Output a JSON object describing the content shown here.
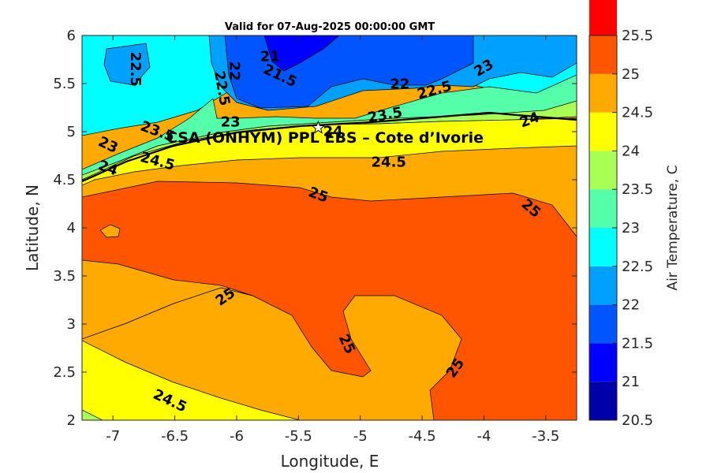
{
  "chart_data": {
    "type": "heatmap",
    "title": "Valid for 07-Aug-2025 00:00:00 GMT",
    "xlabel": "Longitude, E",
    "ylabel": "Latitude, N",
    "xlim": [
      -7.25,
      -3.25
    ],
    "ylim": [
      2,
      6
    ],
    "xticks": [
      "-7",
      "-6.5",
      "-6",
      "-5.5",
      "-5",
      "-4.5",
      "-4",
      "-3.5"
    ],
    "xtick_values": [
      -7,
      -6.5,
      -6,
      -5.5,
      -5,
      -4.5,
      -4,
      -3.5
    ],
    "yticks": [
      "2",
      "2.5",
      "3",
      "3.5",
      "4",
      "4.5",
      "5",
      "5.5",
      "6"
    ],
    "ytick_values": [
      2,
      2.5,
      3,
      3.5,
      4,
      4.5,
      5,
      5.5,
      6
    ],
    "colorbar": {
      "label": "Air Temperature, C",
      "ticks": [
        "20.5",
        "21",
        "21.5",
        "22",
        "22.5",
        "23",
        "23.5",
        "24",
        "24.5",
        "25",
        "25.5"
      ],
      "tick_values": [
        20.5,
        21,
        21.5,
        22,
        22.5,
        23,
        23.5,
        24,
        24.5,
        25,
        25.5
      ],
      "colors": [
        "#0000a8",
        "#0000ff",
        "#0055ff",
        "#00a0ff",
        "#00ffff",
        "#55ffaa",
        "#aaff55",
        "#ffff00",
        "#ffaa00",
        "#ff5500",
        "#ff0000"
      ]
    },
    "station": {
      "name": "CSA (ONHYM) PPL EBS  – Cote d’Ivorie",
      "lon": -5.34,
      "lat": 5.04
    },
    "contour_labels": [
      {
        "text": "22.5",
        "lon": -6.82,
        "lat": 5.65,
        "rot": 90
      },
      {
        "text": "21",
        "lon": -5.73,
        "lat": 5.78,
        "rot": 0
      },
      {
        "text": "21.5",
        "lon": -5.65,
        "lat": 5.58,
        "rot": 25
      },
      {
        "text": "22",
        "lon": -6.02,
        "lat": 5.63,
        "rot": 90
      },
      {
        "text": "22.5",
        "lon": -6.12,
        "lat": 5.45,
        "rot": 80
      },
      {
        "text": "22",
        "lon": -4.68,
        "lat": 5.49,
        "rot": 0
      },
      {
        "text": "22.5",
        "lon": -4.4,
        "lat": 5.43,
        "rot": -15
      },
      {
        "text": "23",
        "lon": -4.0,
        "lat": 5.66,
        "rot": -30
      },
      {
        "text": "23",
        "lon": -6.05,
        "lat": 5.1,
        "rot": 0
      },
      {
        "text": "23.5",
        "lon": -6.64,
        "lat": 5.0,
        "rot": 20
      },
      {
        "text": "23",
        "lon": -7.04,
        "lat": 4.86,
        "rot": 25
      },
      {
        "text": "24",
        "lon": -7.04,
        "lat": 4.62,
        "rot": 20
      },
      {
        "text": "24.5",
        "lon": -6.64,
        "lat": 4.69,
        "rot": 15
      },
      {
        "text": "24",
        "lon": -5.22,
        "lat": 5.0,
        "rot": 0
      },
      {
        "text": "23.5",
        "lon": -4.8,
        "lat": 5.17,
        "rot": -10
      },
      {
        "text": "24",
        "lon": -3.63,
        "lat": 5.12,
        "rot": -20
      },
      {
        "text": "24.5",
        "lon": -4.77,
        "lat": 4.68,
        "rot": 0
      },
      {
        "text": "25",
        "lon": -5.34,
        "lat": 4.34,
        "rot": 20
      },
      {
        "text": "25",
        "lon": -3.62,
        "lat": 4.2,
        "rot": 40
      },
      {
        "text": "25",
        "lon": -6.09,
        "lat": 3.28,
        "rot": -35
      },
      {
        "text": "25",
        "lon": -5.11,
        "lat": 2.79,
        "rot": 65
      },
      {
        "text": "25",
        "lon": -4.23,
        "lat": 2.54,
        "rot": -55
      },
      {
        "text": "24.5",
        "lon": -6.54,
        "lat": 2.2,
        "rot": 25
      }
    ]
  }
}
